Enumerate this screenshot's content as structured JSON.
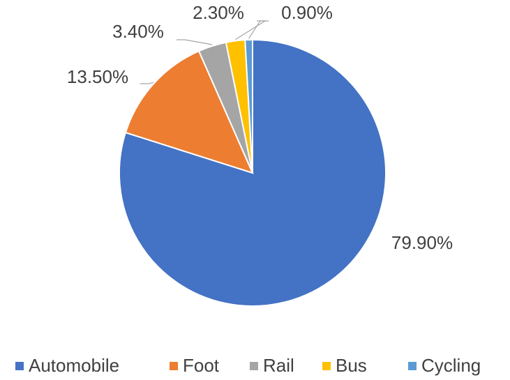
{
  "chart_data": {
    "type": "pie",
    "categories": [
      "Automobile",
      "Foot",
      "Rail",
      "Bus",
      "Cycling"
    ],
    "values": [
      79.9,
      13.5,
      3.4,
      2.3,
      0.9
    ],
    "value_labels": [
      "79.90%",
      "13.50%",
      "3.40%",
      "2.30%",
      "0.90%"
    ],
    "colors": [
      "#4472c4",
      "#ed7d31",
      "#a5a5a5",
      "#ffc000",
      "#5b9bd5"
    ],
    "legend": "bottom"
  }
}
